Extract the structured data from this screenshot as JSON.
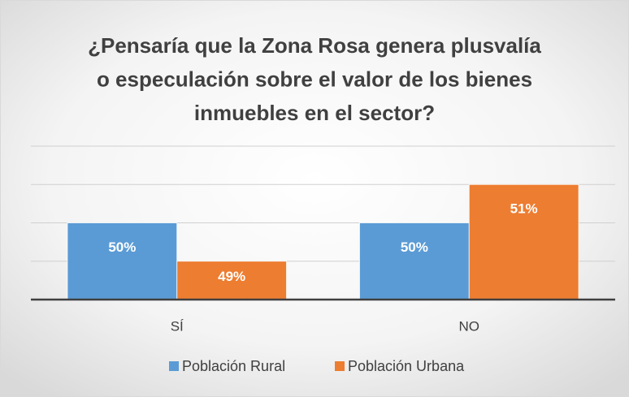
{
  "chart_data": {
    "type": "bar",
    "title": [
      "¿Pensaría que la Zona Rosa genera plusvalía",
      "o especulación sobre el valor de los bienes",
      "inmuebles en el sector?"
    ],
    "categories": [
      "SÍ",
      "NO"
    ],
    "series": [
      {
        "name": "Población Rural",
        "color": "#5b9bd5",
        "values": [
          50,
          50
        ],
        "value_labels": [
          "50%",
          "50%"
        ]
      },
      {
        "name": "Población Urbana",
        "color": "#ed7d31",
        "values": [
          49,
          51
        ],
        "value_labels": [
          "49%",
          "51%"
        ]
      }
    ],
    "ylim": [
      48,
      52
    ],
    "yticks": [
      48,
      49,
      50,
      51,
      52
    ],
    "grid": true,
    "legend": "bottom"
  }
}
